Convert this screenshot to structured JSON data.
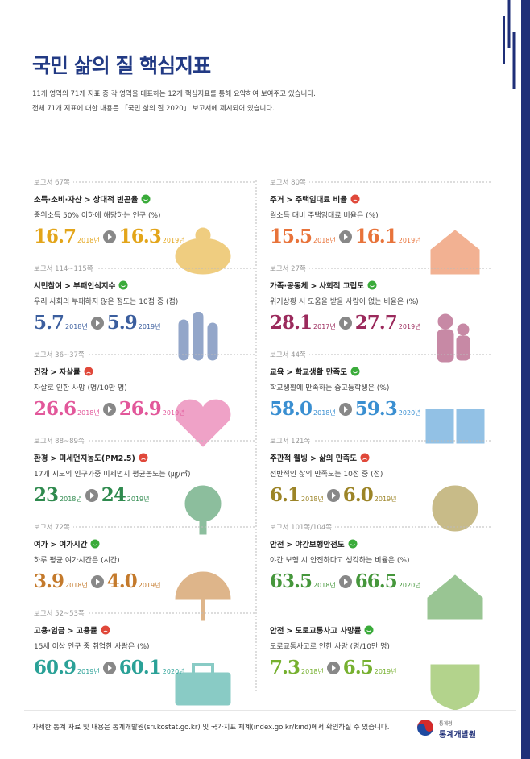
{
  "header": {
    "title": "국민 삶의 질 핵심지표",
    "lines": [
      "11개 영역의 71개 지표 중 각 영역을 대표하는 12개 핵심지표를 통해 요약하여 보여주고 있습니다.",
      "전체 71개 지표에 대한 내용은 「국민 삶의 질 2020」 보고서에 제시되어 있습니다."
    ]
  },
  "columns": [
    [
      {
        "report": "보고서 67쪽",
        "domain": "소득·소비·자산",
        "indicator": "상대적 빈곤율",
        "status": "good",
        "desc": "중위소득 50% 이하에 해당하는 인구 (%)",
        "color": "#e3a51a",
        "from": {
          "value": "16.7",
          "year": "2018년"
        },
        "to": {
          "value": "16.3",
          "year": "2019년"
        }
      },
      {
        "report": "보고서 114~115쪽",
        "domain": "시민참여",
        "indicator": "부패인식지수",
        "status": "good",
        "desc": "우리 사회의 부패하지 않은 정도는 10점 중 (점)",
        "color": "#3b5e9e",
        "from": {
          "value": "5.7",
          "year": "2018년"
        },
        "to": {
          "value": "5.9",
          "year": "2019년"
        }
      },
      {
        "report": "보고서 36~37쪽",
        "domain": "건강",
        "indicator": "자살률",
        "status": "bad",
        "desc": "자살로 인한 사망 (명/10만 명)",
        "color": "#e2579a",
        "from": {
          "value": "26.6",
          "year": "2018년"
        },
        "to": {
          "value": "26.9",
          "year": "2019년"
        }
      },
      {
        "report": "보고서 88~89쪽",
        "domain": "환경",
        "indicator": "미세먼지농도(PM2.5)",
        "status": "bad",
        "desc": "17개 시도의 인구가중 미세먼지 평균농도는 (㎍/㎥)",
        "color": "#2f8a4e",
        "from": {
          "value": "23",
          "year": "2018년"
        },
        "to": {
          "value": "24",
          "year": "2019년"
        }
      },
      {
        "report": "보고서 72쪽",
        "domain": "여가",
        "indicator": "여가시간",
        "status": "good",
        "desc": "하루 평균 여가시간은 (시간)",
        "color": "#c47a2c",
        "from": {
          "value": "3.9",
          "year": "2018년"
        },
        "to": {
          "value": "4.0",
          "year": "2019년"
        }
      },
      {
        "report": "보고서 52~53쪽",
        "domain": "고용·임금",
        "indicator": "고용률",
        "status": "bad",
        "desc": "15세 이상 인구 중 취업한 사람은 (%)",
        "color": "#2aa197",
        "from": {
          "value": "60.9",
          "year": "2019년"
        },
        "to": {
          "value": "60.1",
          "year": "2020년"
        }
      }
    ],
    [
      {
        "report": "보고서 80쪽",
        "domain": "주거",
        "indicator": "주택임대료 비율",
        "status": "bad",
        "desc": "월소득 대비 주택임대료 비율은 (%)",
        "color": "#e8733a",
        "from": {
          "value": "15.5",
          "year": "2018년"
        },
        "to": {
          "value": "16.1",
          "year": "2019년"
        }
      },
      {
        "report": "보고서 27쪽",
        "domain": "가족·공동체",
        "indicator": "사회적 고립도",
        "status": "good",
        "desc": "위기상황 시 도움을 받을 사람이 없는 비율은 (%)",
        "color": "#9b2a5c",
        "from": {
          "value": "28.1",
          "year": "2017년"
        },
        "to": {
          "value": "27.7",
          "year": "2019년"
        }
      },
      {
        "report": "보고서 44쪽",
        "domain": "교육",
        "indicator": "학교생활 만족도",
        "status": "good",
        "desc": "학교생활에 만족하는 중고등학생은 (%)",
        "color": "#3a8fd1",
        "from": {
          "value": "58.0",
          "year": "2018년"
        },
        "to": {
          "value": "59.3",
          "year": "2020년"
        }
      },
      {
        "report": "보고서 121쪽",
        "domain": "주관적 웰빙",
        "indicator": "삶의 만족도",
        "status": "bad",
        "desc": "전반적인 삶의 만족도는 10점 중 (점)",
        "color": "#9c8427",
        "from": {
          "value": "6.1",
          "year": "2018년"
        },
        "to": {
          "value": "6.0",
          "year": "2019년"
        }
      },
      {
        "report": "보고서 101쪽/104쪽",
        "domain": "안전",
        "indicator": "야간보행안전도",
        "status": "good",
        "desc": "야간 보행 시 안전하다고 생각하는 비율은 (%)",
        "color": "#46973c",
        "from": {
          "value": "63.5",
          "year": "2018년"
        },
        "to": {
          "value": "66.5",
          "year": "2020년"
        }
      },
      {
        "domain": "안전",
        "indicator": "도로교통사고 사망률",
        "status": "good",
        "desc": "도로교통사고로 인한 사망 (명/10만 명)",
        "color": "#76b02f",
        "from": {
          "value": "7.3",
          "year": "2018년"
        },
        "to": {
          "value": "6.5",
          "year": "2019년"
        }
      }
    ]
  ],
  "footer": {
    "note": "자세한 통계 자료 및 내용은 통계개발원(sri.kostat.go.kr) 및 국가지표 체계(index.go.kr/kind)에서 확인하실 수 있습니다.",
    "logo": {
      "small": "통계청",
      "name": "통계개발원"
    }
  }
}
